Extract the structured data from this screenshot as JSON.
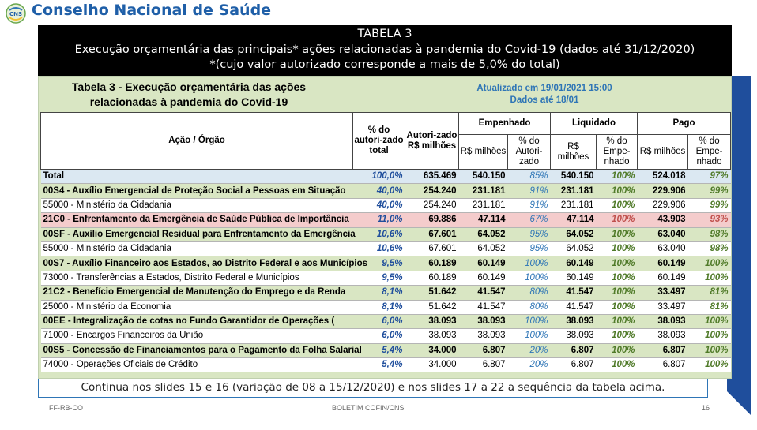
{
  "header": {
    "org_name": "Conselho Nacional de Saúde",
    "logo_text": "CNS"
  },
  "banner": {
    "line1": "TABELA 3",
    "line2": "Execução orçamentária das principais* ações relacionadas à pandemia do Covid-19 (dados até 31/12/2020)",
    "line3": "*(cujo valor autorizado corresponde a mais de 5,0% do total)"
  },
  "table_band": {
    "title_line1": "Tabela 3 - Execução orçamentária das ações",
    "title_line2": "relacionadas à pandemia do Covid-19",
    "updated_line1": "Atualizado em 19/01/2021 15:00",
    "updated_line2": "Dados até 18/01"
  },
  "columns": {
    "acao": "Ação / Órgão",
    "pct_total": "% do autori-zado total",
    "autorizado": "Autori-zado R$ milhões",
    "empenhado": "Empenhado",
    "liquidado": "Liquidado",
    "pago": "Pago",
    "rs_milhoes": "R$ milhões",
    "pct_autorizado": "% do Autori-zado",
    "pct_empenhado": "% do Empe-nhado"
  },
  "rows": [
    {
      "type": "total",
      "acao": "Total",
      "pct": "100,0%",
      "autorizado": "635.469",
      "emp": "540.150",
      "emp_pct": "85%",
      "liq": "540.150",
      "liq_pct": "100%",
      "pago": "524.018",
      "pago_pct": "97%"
    },
    {
      "type": "green",
      "acao": "00S4 - Auxílio Emergencial de Proteção Social a Pessoas em Situação",
      "pct": "40,0%",
      "autorizado": "254.240",
      "emp": "231.181",
      "emp_pct": "91%",
      "liq": "231.181",
      "liq_pct": "100%",
      "pago": "229.906",
      "pago_pct": "99%"
    },
    {
      "type": "white",
      "acao": "55000 - Ministério da Cidadania",
      "pct": "40,0%",
      "autorizado": "254.240",
      "emp": "231.181",
      "emp_pct": "91%",
      "liq": "231.181",
      "liq_pct": "100%",
      "pago": "229.906",
      "pago_pct": "99%"
    },
    {
      "type": "red",
      "acao": "21C0 - Enfrentamento da Emergência de Saúde Pública de Importância",
      "pct": "11,0%",
      "autorizado": "69.886",
      "emp": "47.114",
      "emp_pct": "67%",
      "liq": "47.114",
      "liq_pct": "100%",
      "pago": "43.903",
      "pago_pct": "93%"
    },
    {
      "type": "green",
      "acao": "00SF - Auxílio Emergencial Residual para Enfrentamento da Emergência",
      "pct": "10,6%",
      "autorizado": "67.601",
      "emp": "64.052",
      "emp_pct": "95%",
      "liq": "64.052",
      "liq_pct": "100%",
      "pago": "63.040",
      "pago_pct": "98%"
    },
    {
      "type": "white",
      "acao": "55000 - Ministério da Cidadania",
      "pct": "10,6%",
      "autorizado": "67.601",
      "emp": "64.052",
      "emp_pct": "95%",
      "liq": "64.052",
      "liq_pct": "100%",
      "pago": "63.040",
      "pago_pct": "98%"
    },
    {
      "type": "green",
      "acao": "00S7 - Auxílio Financeiro aos Estados, ao Distrito Federal e aos Municípios",
      "pct": "9,5%",
      "autorizado": "60.189",
      "emp": "60.149",
      "emp_pct": "100%",
      "liq": "60.149",
      "liq_pct": "100%",
      "pago": "60.149",
      "pago_pct": "100%"
    },
    {
      "type": "white",
      "acao": "73000 - Transferências a Estados, Distrito Federal e Municípios",
      "pct": "9,5%",
      "autorizado": "60.189",
      "emp": "60.149",
      "emp_pct": "100%",
      "liq": "60.149",
      "liq_pct": "100%",
      "pago": "60.149",
      "pago_pct": "100%"
    },
    {
      "type": "green",
      "acao": "21C2 - Benefício Emergencial de Manutenção do Emprego e da Renda",
      "pct": "8,1%",
      "autorizado": "51.642",
      "emp": "41.547",
      "emp_pct": "80%",
      "liq": "41.547",
      "liq_pct": "100%",
      "pago": "33.497",
      "pago_pct": "81%"
    },
    {
      "type": "white",
      "acao": "25000 - Ministério da Economia",
      "pct": "8,1%",
      "autorizado": "51.642",
      "emp": "41.547",
      "emp_pct": "80%",
      "liq": "41.547",
      "liq_pct": "100%",
      "pago": "33.497",
      "pago_pct": "81%"
    },
    {
      "type": "green",
      "acao": "00EE - Integralização de cotas no Fundo Garantidor de Operações (",
      "pct": "6,0%",
      "autorizado": "38.093",
      "emp": "38.093",
      "emp_pct": "100%",
      "liq": "38.093",
      "liq_pct": "100%",
      "pago": "38.093",
      "pago_pct": "100%"
    },
    {
      "type": "white",
      "acao": "71000 - Encargos Financeiros da União",
      "pct": "6,0%",
      "autorizado": "38.093",
      "emp": "38.093",
      "emp_pct": "100%",
      "liq": "38.093",
      "liq_pct": "100%",
      "pago": "38.093",
      "pago_pct": "100%"
    },
    {
      "type": "green",
      "acao": "00S5 - Concessão de Financiamentos para o Pagamento da Folha Salarial",
      "pct": "5,4%",
      "autorizado": "34.000",
      "emp": "6.807",
      "emp_pct": "20%",
      "liq": "6.807",
      "liq_pct": "100%",
      "pago": "6.807",
      "pago_pct": "100%"
    },
    {
      "type": "white",
      "acao": "74000 - Operações Oficiais de Crédito",
      "pct": "5,4%",
      "autorizado": "34.000",
      "emp": "6.807",
      "emp_pct": "20%",
      "liq": "6.807",
      "liq_pct": "100%",
      "pago": "6.807",
      "pago_pct": "100%"
    }
  ],
  "note": "Continua nos slides 15 e 16 (variação de 08 a 15/12/2020) e nos slides 17 a 22 a sequência da tabela acima.",
  "footer": {
    "left": "FF-RB-CO",
    "center": "BOLETIM COFIN/CNS",
    "page": "16"
  },
  "colors": {
    "brand_blue": "#1f5fa8",
    "row_green": "#d9e6c3",
    "row_red": "#f4cccc",
    "row_total": "#dbe8f2"
  }
}
